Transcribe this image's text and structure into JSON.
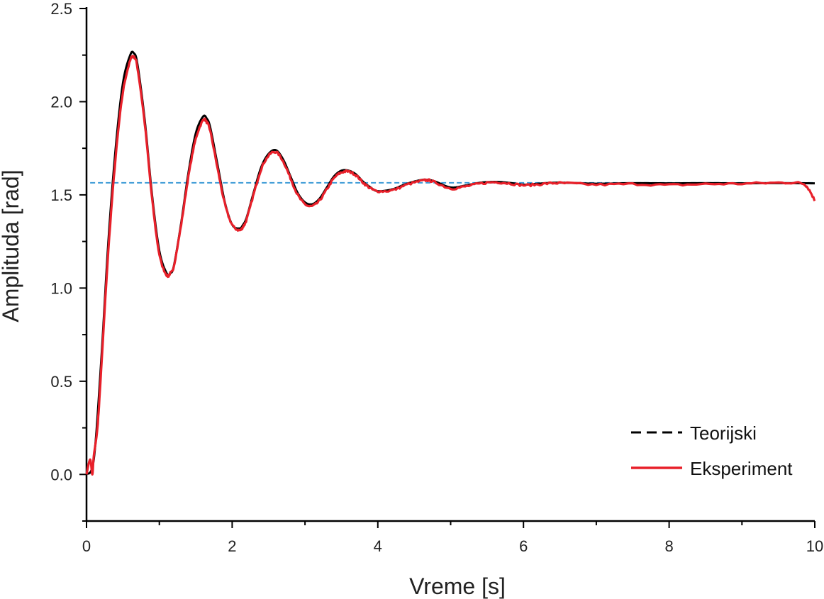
{
  "chart_data": {
    "type": "line",
    "title": "",
    "xlabel": "Vreme [s]",
    "ylabel": "Amplituda [rad]",
    "xlim": [
      0,
      10
    ],
    "ylim": [
      -0.25,
      2.5
    ],
    "xticks": [
      0,
      2,
      4,
      6,
      8,
      10
    ],
    "xtick_labels": [
      "0",
      "2",
      "4",
      "6",
      "8",
      "10"
    ],
    "yticks": [
      0.0,
      0.5,
      1.0,
      1.5,
      2.0,
      2.5
    ],
    "ytick_labels": [
      "0.0",
      "0.5",
      "1.0",
      "1.5",
      "2.0",
      "2.5"
    ],
    "grid": false,
    "legend_position": "bottom-right",
    "reference_line": {
      "y": 1.565,
      "style": "dashed",
      "color": "#3d9bd6"
    },
    "series": [
      {
        "name": "Teorijski",
        "style": "dashed",
        "color": "#000000",
        "x": [
          0,
          0.1,
          0.2,
          0.3,
          0.4,
          0.5,
          0.6,
          0.65,
          0.7,
          0.8,
          0.9,
          1.0,
          1.1,
          1.15,
          1.2,
          1.3,
          1.4,
          1.5,
          1.6,
          1.65,
          1.7,
          1.8,
          1.9,
          2.0,
          2.1,
          2.15,
          2.2,
          2.3,
          2.4,
          2.5,
          2.6,
          2.7,
          2.8,
          2.9,
          3.0,
          3.1,
          3.2,
          3.3,
          3.4,
          3.5,
          3.6,
          3.7,
          3.8,
          3.9,
          4.0,
          4.2,
          4.4,
          4.6,
          4.7,
          4.8,
          5.0,
          5.2,
          5.4,
          5.6,
          5.8,
          6.0,
          6.2,
          6.4,
          6.6,
          7.0,
          7.5,
          8.0,
          8.5,
          9.0,
          9.5,
          10.0
        ],
        "y": [
          0,
          0.08,
          0.6,
          1.25,
          1.75,
          2.1,
          2.25,
          2.26,
          2.2,
          1.9,
          1.5,
          1.2,
          1.08,
          1.08,
          1.12,
          1.35,
          1.62,
          1.83,
          1.92,
          1.91,
          1.86,
          1.66,
          1.46,
          1.34,
          1.32,
          1.34,
          1.38,
          1.52,
          1.65,
          1.72,
          1.74,
          1.69,
          1.6,
          1.51,
          1.46,
          1.45,
          1.48,
          1.54,
          1.6,
          1.63,
          1.63,
          1.61,
          1.57,
          1.54,
          1.52,
          1.53,
          1.56,
          1.58,
          1.58,
          1.57,
          1.54,
          1.55,
          1.565,
          1.57,
          1.565,
          1.555,
          1.56,
          1.565,
          1.565,
          1.56,
          1.563,
          1.562,
          1.563,
          1.562,
          1.563,
          1.562
        ]
      },
      {
        "name": "Eksperiment",
        "style": "solid",
        "color": "#e8202a",
        "x": [
          0,
          0.05,
          0.08,
          0.1,
          0.15,
          0.2,
          0.3,
          0.4,
          0.5,
          0.6,
          0.65,
          0.7,
          0.8,
          0.9,
          1.0,
          1.1,
          1.15,
          1.2,
          1.3,
          1.4,
          1.5,
          1.6,
          1.65,
          1.7,
          1.8,
          1.9,
          2.0,
          2.1,
          2.15,
          2.2,
          2.3,
          2.4,
          2.5,
          2.6,
          2.7,
          2.8,
          2.9,
          3.0,
          3.1,
          3.2,
          3.3,
          3.4,
          3.5,
          3.6,
          3.7,
          3.8,
          3.9,
          4.0,
          4.2,
          4.4,
          4.6,
          4.7,
          4.8,
          5.0,
          5.2,
          5.4,
          5.6,
          5.8,
          6.0,
          6.2,
          6.4,
          6.6,
          7.0,
          7.5,
          8.0,
          8.5,
          9.0,
          9.5,
          9.8,
          9.9,
          10.0
        ],
        "y": [
          0,
          0.08,
          0.0,
          0.1,
          0.25,
          0.55,
          1.2,
          1.7,
          2.05,
          2.22,
          2.24,
          2.18,
          1.88,
          1.48,
          1.18,
          1.07,
          1.08,
          1.12,
          1.34,
          1.6,
          1.8,
          1.9,
          1.89,
          1.84,
          1.64,
          1.45,
          1.34,
          1.31,
          1.33,
          1.37,
          1.51,
          1.64,
          1.71,
          1.73,
          1.68,
          1.59,
          1.5,
          1.45,
          1.44,
          1.47,
          1.53,
          1.59,
          1.62,
          1.625,
          1.605,
          1.565,
          1.535,
          1.52,
          1.525,
          1.555,
          1.575,
          1.578,
          1.565,
          1.535,
          1.545,
          1.56,
          1.568,
          1.562,
          1.552,
          1.556,
          1.563,
          1.562,
          1.555,
          1.558,
          1.553,
          1.558,
          1.56,
          1.565,
          1.563,
          1.54,
          1.47
        ]
      }
    ]
  }
}
